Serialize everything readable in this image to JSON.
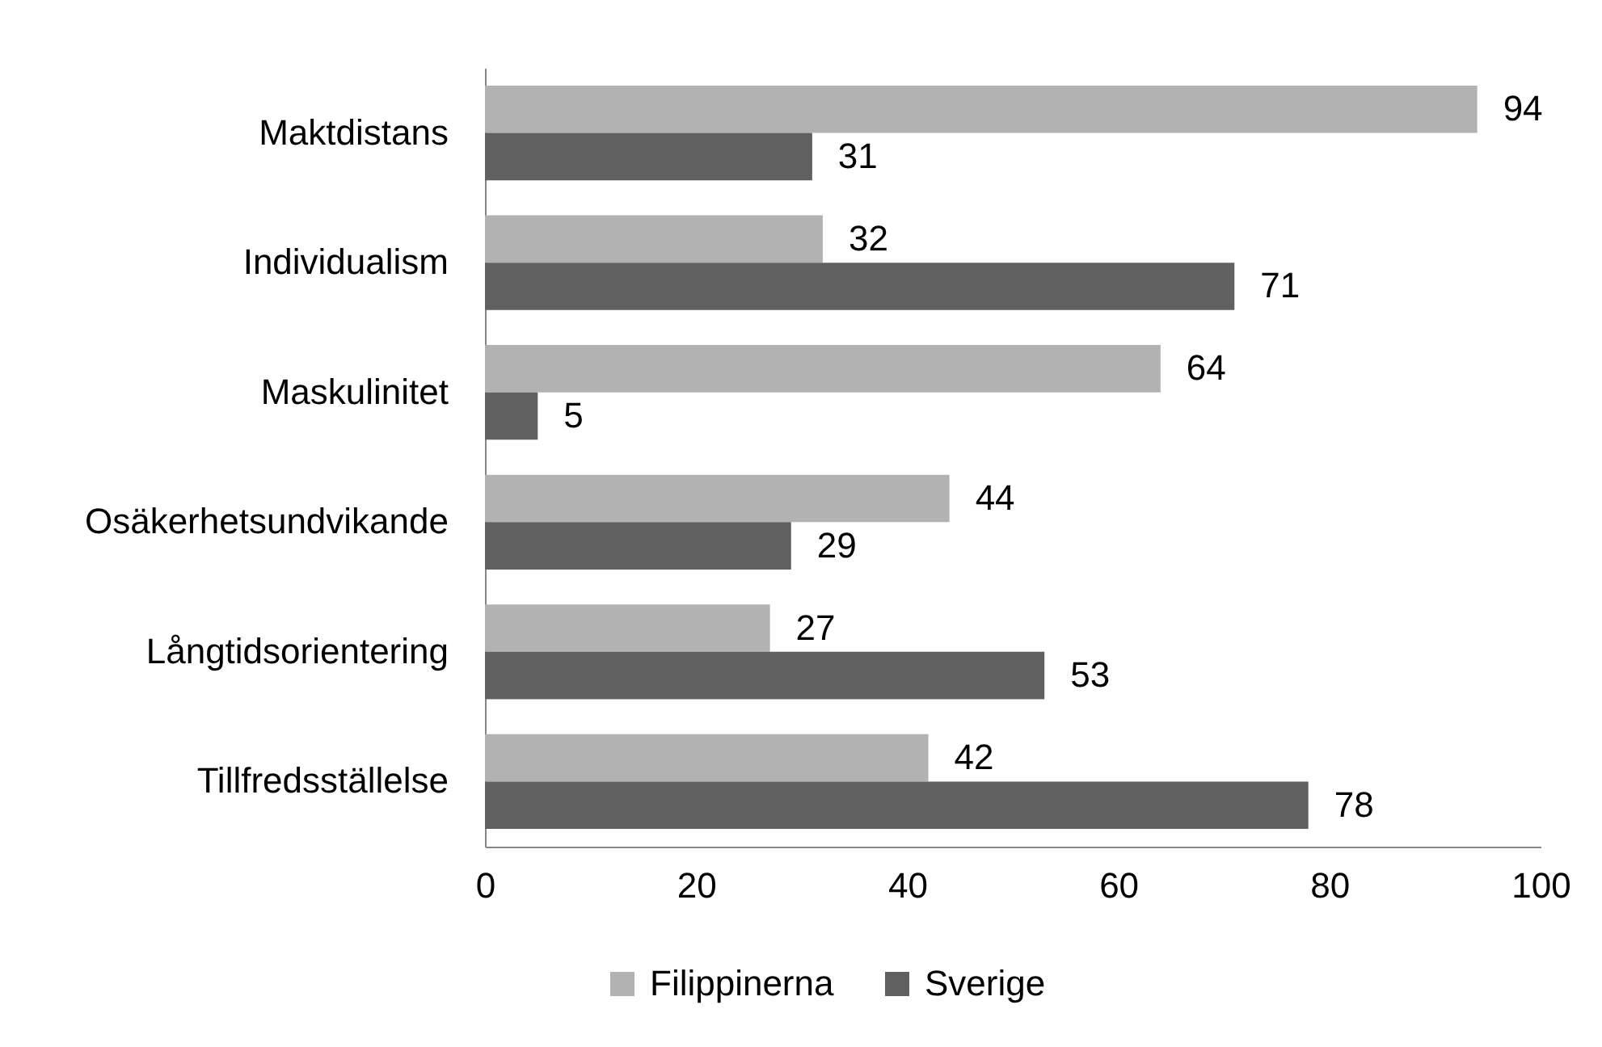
{
  "chart_data": {
    "type": "bar",
    "orientation": "horizontal",
    "categories": [
      "Maktdistans",
      "Individualism",
      "Maskulinitet",
      "Osäkerhetsundvikande",
      "Långtidsorientering",
      "Tillfredsställelse"
    ],
    "series": [
      {
        "name": "Filippinerna",
        "color": "#b2b2b2",
        "values": [
          94,
          32,
          64,
          44,
          27,
          42
        ]
      },
      {
        "name": "Sverige",
        "color": "#606060",
        "values": [
          31,
          71,
          5,
          29,
          53,
          78
        ]
      }
    ],
    "xlim": [
      0,
      100
    ],
    "xticks": [
      0,
      20,
      40,
      60,
      80,
      100
    ],
    "grid": false,
    "legend": "bottom",
    "data_labels": true
  }
}
